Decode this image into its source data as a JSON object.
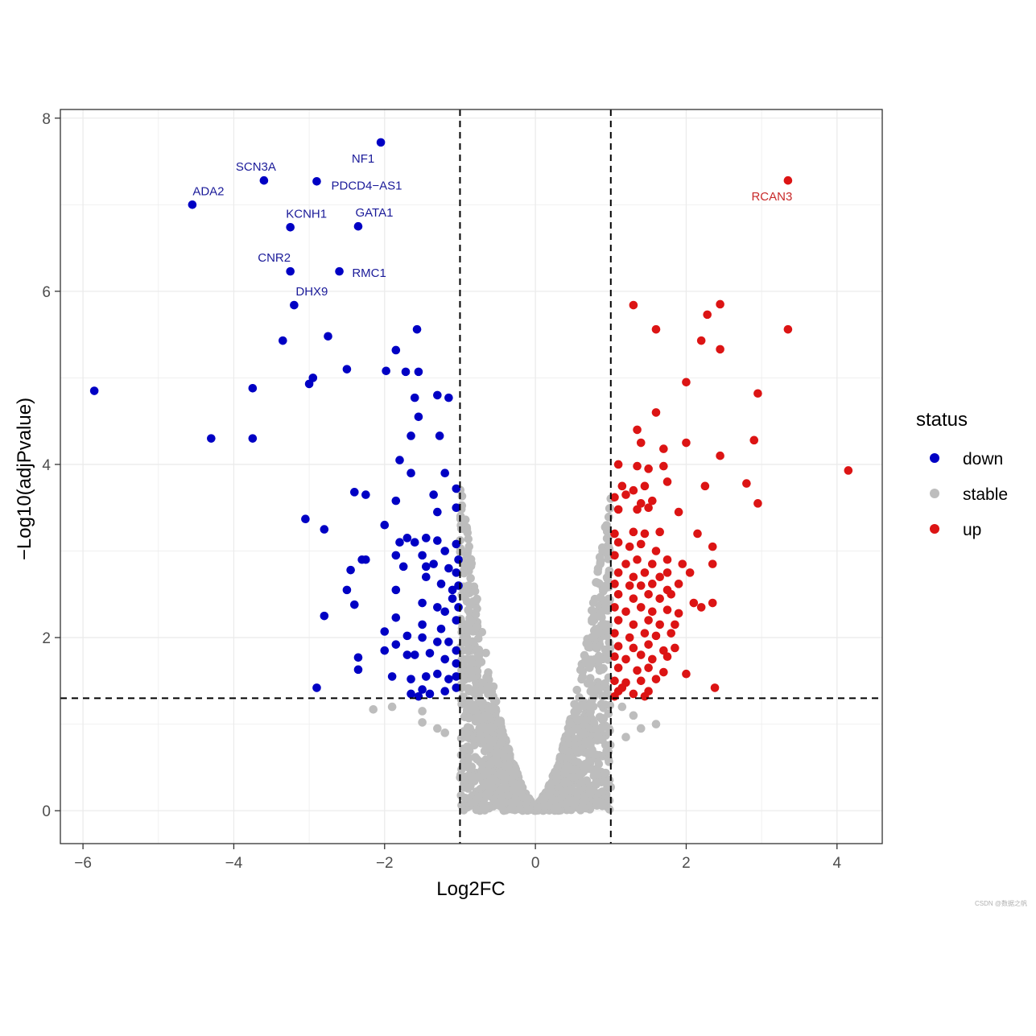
{
  "chart_data": {
    "type": "scatter",
    "title": "",
    "xlabel": "Log2FC",
    "ylabel": "−Log10(adjPvalue)",
    "xlim": [
      -6.3,
      4.6
    ],
    "ylim": [
      -0.38,
      8.1
    ],
    "x_ticks": [
      -6,
      -4,
      -2,
      0,
      2,
      4
    ],
    "x_tick_labels": [
      "−6",
      "−4",
      "−2",
      "0",
      "2",
      "4"
    ],
    "y_ticks": [
      0,
      2,
      4,
      6,
      8
    ],
    "y_tick_labels": [
      "0",
      "2",
      "4",
      "6",
      "8"
    ],
    "grid": true,
    "thresholds": {
      "log2fc": [
        -1,
        1
      ],
      "neg_log10_p": 1.3
    },
    "legend": {
      "title": "status",
      "placement": "right",
      "entries": [
        {
          "label": "down",
          "color": "#0000c4"
        },
        {
          "label": "stable",
          "color": "#bdbdbd"
        },
        {
          "label": "up",
          "color": "#dc1414"
        }
      ]
    },
    "series": [
      {
        "name": "down",
        "color": "#0000c4",
        "points": [
          [
            -2.05,
            7.72
          ],
          [
            -3.6,
            7.28
          ],
          [
            -2.9,
            7.27
          ],
          [
            -4.55,
            7.0
          ],
          [
            -3.25,
            6.74
          ],
          [
            -2.35,
            6.75
          ],
          [
            -3.25,
            6.23
          ],
          [
            -2.6,
            6.23
          ],
          [
            -3.2,
            5.84
          ],
          [
            -5.85,
            4.85
          ],
          [
            -4.3,
            4.3
          ],
          [
            -3.75,
            4.88
          ],
          [
            -3.75,
            4.3
          ],
          [
            -3.35,
            5.43
          ],
          [
            -2.75,
            5.48
          ],
          [
            -2.5,
            5.1
          ],
          [
            -2.95,
            5.0
          ],
          [
            -3.0,
            4.93
          ],
          [
            -1.85,
            5.32
          ],
          [
            -1.57,
            5.56
          ],
          [
            -1.98,
            5.08
          ],
          [
            -1.72,
            5.07
          ],
          [
            -1.55,
            5.07
          ],
          [
            -1.3,
            4.8
          ],
          [
            -1.6,
            4.77
          ],
          [
            -1.15,
            4.77
          ],
          [
            -1.55,
            4.55
          ],
          [
            -1.65,
            4.33
          ],
          [
            -1.27,
            4.33
          ],
          [
            -1.8,
            4.05
          ],
          [
            -1.65,
            3.9
          ],
          [
            -1.2,
            3.9
          ],
          [
            -2.4,
            3.68
          ],
          [
            -2.25,
            3.65
          ],
          [
            -1.85,
            3.58
          ],
          [
            -1.05,
            3.72
          ],
          [
            -1.35,
            3.65
          ],
          [
            -1.3,
            3.45
          ],
          [
            -1.05,
            3.5
          ],
          [
            -3.05,
            3.37
          ],
          [
            -2.8,
            3.25
          ],
          [
            -2.0,
            3.3
          ],
          [
            -1.8,
            3.1
          ],
          [
            -1.7,
            3.15
          ],
          [
            -1.6,
            3.1
          ],
          [
            -1.45,
            3.15
          ],
          [
            -1.3,
            3.12
          ],
          [
            -1.05,
            3.08
          ],
          [
            -1.85,
            2.95
          ],
          [
            -1.5,
            2.95
          ],
          [
            -1.2,
            3.0
          ],
          [
            -2.3,
            2.9
          ],
          [
            -2.25,
            2.9
          ],
          [
            -2.45,
            2.78
          ],
          [
            -1.75,
            2.82
          ],
          [
            -1.45,
            2.82
          ],
          [
            -1.35,
            2.85
          ],
          [
            -1.15,
            2.8
          ],
          [
            -1.05,
            2.75
          ],
          [
            -1.02,
            2.9
          ],
          [
            -1.45,
            2.7
          ],
          [
            -1.25,
            2.62
          ],
          [
            -1.1,
            2.55
          ],
          [
            -1.02,
            2.6
          ],
          [
            -2.5,
            2.55
          ],
          [
            -2.4,
            2.38
          ],
          [
            -1.85,
            2.55
          ],
          [
            -1.5,
            2.4
          ],
          [
            -1.3,
            2.35
          ],
          [
            -1.2,
            2.3
          ],
          [
            -1.1,
            2.45
          ],
          [
            -1.02,
            2.35
          ],
          [
            -2.8,
            2.25
          ],
          [
            -1.85,
            2.23
          ],
          [
            -1.5,
            2.15
          ],
          [
            -1.25,
            2.1
          ],
          [
            -1.05,
            2.2
          ],
          [
            -2.0,
            2.07
          ],
          [
            -1.7,
            2.02
          ],
          [
            -1.5,
            2.0
          ],
          [
            -1.3,
            1.95
          ],
          [
            -1.15,
            1.95
          ],
          [
            -1.05,
            1.85
          ],
          [
            -2.0,
            1.85
          ],
          [
            -1.85,
            1.92
          ],
          [
            -1.7,
            1.8
          ],
          [
            -1.6,
            1.8
          ],
          [
            -1.4,
            1.82
          ],
          [
            -1.2,
            1.75
          ],
          [
            -1.05,
            1.7
          ],
          [
            -2.35,
            1.77
          ],
          [
            -2.35,
            1.63
          ],
          [
            -1.9,
            1.55
          ],
          [
            -1.65,
            1.52
          ],
          [
            -1.45,
            1.55
          ],
          [
            -1.3,
            1.58
          ],
          [
            -1.15,
            1.52
          ],
          [
            -1.05,
            1.55
          ],
          [
            -2.9,
            1.42
          ],
          [
            -1.65,
            1.35
          ],
          [
            -1.5,
            1.4
          ],
          [
            -1.4,
            1.35
          ],
          [
            -1.2,
            1.38
          ],
          [
            -1.05,
            1.42
          ],
          [
            -1.55,
            1.32
          ]
        ]
      },
      {
        "name": "up",
        "color": "#dc1414",
        "points": [
          [
            3.35,
            7.28
          ],
          [
            1.3,
            5.84
          ],
          [
            2.45,
            5.85
          ],
          [
            2.28,
            5.73
          ],
          [
            1.6,
            5.56
          ],
          [
            3.35,
            5.56
          ],
          [
            2.2,
            5.43
          ],
          [
            2.45,
            5.33
          ],
          [
            2.0,
            4.95
          ],
          [
            2.95,
            4.82
          ],
          [
            1.6,
            4.6
          ],
          [
            1.35,
            4.4
          ],
          [
            1.4,
            4.25
          ],
          [
            2.0,
            4.25
          ],
          [
            2.9,
            4.28
          ],
          [
            1.7,
            4.18
          ],
          [
            2.45,
            4.1
          ],
          [
            1.1,
            4.0
          ],
          [
            1.35,
            3.98
          ],
          [
            1.5,
            3.95
          ],
          [
            1.7,
            3.98
          ],
          [
            4.15,
            3.93
          ],
          [
            1.15,
            3.75
          ],
          [
            1.3,
            3.7
          ],
          [
            1.45,
            3.75
          ],
          [
            1.75,
            3.8
          ],
          [
            2.25,
            3.75
          ],
          [
            2.8,
            3.78
          ],
          [
            1.05,
            3.62
          ],
          [
            1.2,
            3.65
          ],
          [
            1.4,
            3.55
          ],
          [
            1.55,
            3.58
          ],
          [
            2.95,
            3.55
          ],
          [
            1.1,
            3.48
          ],
          [
            1.35,
            3.48
          ],
          [
            1.5,
            3.5
          ],
          [
            1.9,
            3.45
          ],
          [
            1.05,
            3.2
          ],
          [
            1.3,
            3.22
          ],
          [
            1.45,
            3.2
          ],
          [
            1.65,
            3.22
          ],
          [
            2.15,
            3.2
          ],
          [
            1.1,
            3.1
          ],
          [
            1.25,
            3.05
          ],
          [
            1.4,
            3.08
          ],
          [
            1.6,
            3.0
          ],
          [
            2.35,
            3.05
          ],
          [
            1.05,
            2.95
          ],
          [
            1.2,
            2.85
          ],
          [
            1.35,
            2.9
          ],
          [
            1.55,
            2.85
          ],
          [
            1.75,
            2.9
          ],
          [
            1.95,
            2.85
          ],
          [
            1.1,
            2.75
          ],
          [
            1.3,
            2.7
          ],
          [
            1.45,
            2.75
          ],
          [
            1.65,
            2.7
          ],
          [
            1.75,
            2.75
          ],
          [
            2.05,
            2.75
          ],
          [
            2.35,
            2.85
          ],
          [
            1.05,
            2.62
          ],
          [
            1.25,
            2.6
          ],
          [
            1.4,
            2.6
          ],
          [
            1.55,
            2.62
          ],
          [
            1.75,
            2.55
          ],
          [
            1.9,
            2.62
          ],
          [
            1.1,
            2.5
          ],
          [
            1.3,
            2.45
          ],
          [
            1.5,
            2.5
          ],
          [
            1.65,
            2.45
          ],
          [
            1.8,
            2.5
          ],
          [
            2.1,
            2.4
          ],
          [
            2.35,
            2.4
          ],
          [
            2.2,
            2.35
          ],
          [
            1.05,
            2.35
          ],
          [
            1.2,
            2.3
          ],
          [
            1.4,
            2.35
          ],
          [
            1.55,
            2.3
          ],
          [
            1.75,
            2.32
          ],
          [
            1.9,
            2.28
          ],
          [
            1.1,
            2.2
          ],
          [
            1.3,
            2.15
          ],
          [
            1.5,
            2.2
          ],
          [
            1.65,
            2.15
          ],
          [
            1.85,
            2.15
          ],
          [
            1.05,
            2.05
          ],
          [
            1.25,
            2.0
          ],
          [
            1.45,
            2.05
          ],
          [
            1.6,
            2.02
          ],
          [
            1.8,
            2.05
          ],
          [
            1.1,
            1.9
          ],
          [
            1.3,
            1.88
          ],
          [
            1.5,
            1.92
          ],
          [
            1.7,
            1.85
          ],
          [
            1.85,
            1.88
          ],
          [
            1.05,
            1.78
          ],
          [
            1.2,
            1.75
          ],
          [
            1.4,
            1.8
          ],
          [
            1.55,
            1.75
          ],
          [
            1.75,
            1.78
          ],
          [
            1.1,
            1.65
          ],
          [
            1.35,
            1.62
          ],
          [
            1.5,
            1.65
          ],
          [
            1.7,
            1.6
          ],
          [
            2.0,
            1.58
          ],
          [
            1.05,
            1.5
          ],
          [
            1.2,
            1.48
          ],
          [
            1.4,
            1.5
          ],
          [
            1.6,
            1.52
          ],
          [
            1.1,
            1.38
          ],
          [
            1.3,
            1.35
          ],
          [
            1.5,
            1.38
          ],
          [
            2.38,
            1.42
          ],
          [
            1.05,
            1.32
          ],
          [
            1.45,
            1.32
          ],
          [
            1.15,
            1.42
          ]
        ]
      }
    ],
    "annotations": [
      {
        "text": "NF1",
        "x": -2.05,
        "y": 7.72,
        "color": "#1a1a99"
      },
      {
        "text": "SCN3A",
        "x": -3.6,
        "y": 7.28,
        "color": "#1a1a99"
      },
      {
        "text": "PDCD4−AS1",
        "x": -2.9,
        "y": 7.27,
        "color": "#1a1a99"
      },
      {
        "text": "ADA2",
        "x": -4.55,
        "y": 7.0,
        "color": "#1a1a99"
      },
      {
        "text": "KCNH1",
        "x": -3.25,
        "y": 6.74,
        "color": "#1a1a99"
      },
      {
        "text": "GATA1",
        "x": -2.35,
        "y": 6.75,
        "color": "#1a1a99"
      },
      {
        "text": "CNR2",
        "x": -3.25,
        "y": 6.23,
        "color": "#1a1a99"
      },
      {
        "text": "RMC1",
        "x": -2.6,
        "y": 6.23,
        "color": "#1a1a99"
      },
      {
        "text": "DHX9",
        "x": -3.2,
        "y": 5.84,
        "color": "#1a1a99"
      },
      {
        "text": "RCAN3",
        "x": 3.35,
        "y": 7.28,
        "color": "#c82828"
      }
    ]
  },
  "watermark": "CSDN @数据之帆"
}
